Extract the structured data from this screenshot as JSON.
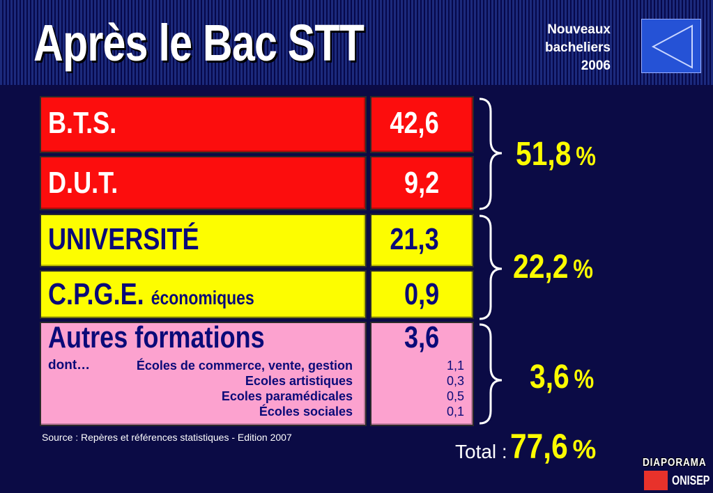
{
  "header": {
    "title": "Après le Bac STT",
    "subtitle_lines": [
      "Nouveaux",
      "bacheliers",
      "2006"
    ]
  },
  "rows": [
    {
      "label": "B.T.S.",
      "value": "42,6",
      "color": "#fc0d0d"
    },
    {
      "label": "D.U.T.",
      "value": "9,2",
      "color": "#fc0d0d"
    },
    {
      "label": "UNIVERSITÉ",
      "value": "21,3",
      "color": "#fdfd00"
    },
    {
      "label": "C.P.G.E.",
      "label_suffix": "économiques",
      "value": "0,9",
      "color": "#fdfd00"
    },
    {
      "label": "Autres formations",
      "value": "3,6",
      "color": "#fca2cf"
    }
  ],
  "autres_detail": {
    "prefix": "dont…",
    "items": [
      {
        "label": "Écoles de commerce, vente, gestion",
        "value": "1,1"
      },
      {
        "label": "Ecoles artistiques",
        "value": "0,3"
      },
      {
        "label": "Ecoles paramédicales",
        "value": "0,5"
      },
      {
        "label": "Écoles sociales",
        "value": "0,1"
      }
    ]
  },
  "groups": [
    {
      "value": "51,8",
      "unit": "%"
    },
    {
      "value": "22,2",
      "unit": "%"
    },
    {
      "value": "3,6",
      "unit": "%"
    }
  ],
  "source": "Source : Repères et références statistiques - Edition 2007",
  "total": {
    "label": "Total :",
    "value": "77,6",
    "unit": "%"
  },
  "logo": {
    "top": "DIAPORAMA",
    "bottom": "ONISEP"
  },
  "colors": {
    "background": "#0b0b45",
    "red": "#fc0d0d",
    "yellow": "#fdfd00",
    "pink": "#fca2cf",
    "accent": "#fcfc00",
    "navy": "#0a0a78"
  },
  "icons": {
    "back": "left-triangle-icon"
  }
}
